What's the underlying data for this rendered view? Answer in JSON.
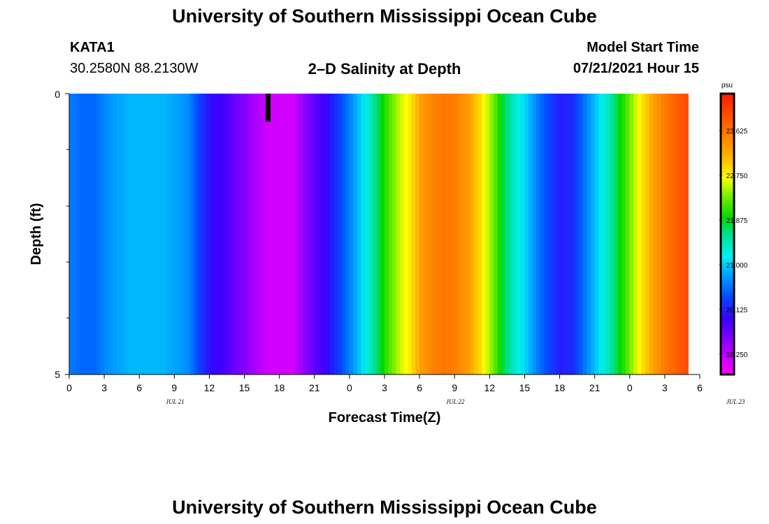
{
  "header": {
    "title": "University of Southern Mississippi Ocean Cube",
    "station": "KATA1",
    "coords": "30.2580N  88.2130W",
    "subtitle": "2–D Salinity at Depth",
    "model_label": "Model Start Time",
    "model_time": "07/21/2021 Hour 15"
  },
  "footer": {
    "title": "University of Southern Mississippi Ocean Cube"
  },
  "chart_data": {
    "type": "heatmap",
    "title": "2–D Salinity at Depth",
    "xlabel": "Forecast Time(Z)",
    "ylabel": "Depth (ft)",
    "ylim": [
      0,
      5
    ],
    "y_ticks": [
      "0",
      "5"
    ],
    "x_ticks": [
      "0",
      "3",
      "6",
      "9",
      "12",
      "15",
      "18",
      "21",
      "0",
      "3",
      "6",
      "9",
      "12",
      "15",
      "18",
      "21",
      "0",
      "3",
      "6"
    ],
    "date_labels": [
      {
        "label": "JUL 21",
        "hour_index": 9
      },
      {
        "label": "JUL 22",
        "hour_index": 33
      },
      {
        "label": "JUL 23",
        "hour_index": 57
      }
    ],
    "x_hours_total": 54,
    "colorbar": {
      "unit": "psu",
      "ticks": [
        "23.625",
        "22.750",
        "21.875",
        "21.000",
        "20.125",
        "19.250"
      ],
      "min": 18.85,
      "max": 24.35
    },
    "salinity_by_hour": [
      20.6,
      20.5,
      20.5,
      20.7,
      20.8,
      20.9,
      20.9,
      20.9,
      20.9,
      20.8,
      20.7,
      20.3,
      20.0,
      19.9,
      19.7,
      19.5,
      19.3,
      19.1,
      19.1,
      19.1,
      19.5,
      19.8,
      20.0,
      20.3,
      20.7,
      21.1,
      21.6,
      22.1,
      22.5,
      22.8,
      23.3,
      23.5,
      23.6,
      23.5,
      23.3,
      22.9,
      22.4,
      21.8,
      21.3,
      21.0,
      20.6,
      20.3,
      20.1,
      20.2,
      20.6,
      21.0,
      21.4,
      21.9,
      22.4,
      22.9,
      23.3,
      23.6,
      23.8,
      24.0
    ],
    "marker": {
      "hour": 17
    }
  }
}
